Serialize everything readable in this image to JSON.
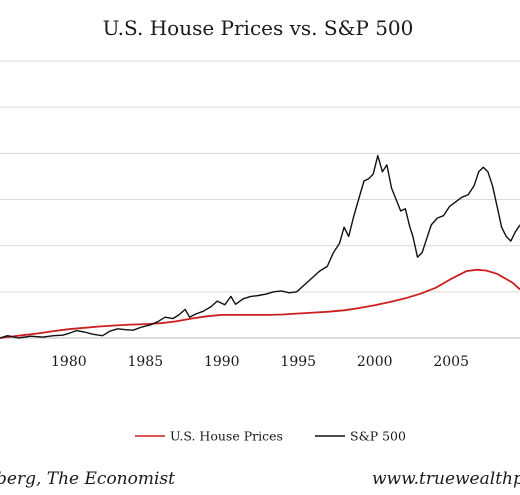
{
  "colors": {
    "house": "#cc1f1f",
    "sp500": "#111111",
    "grid": "#d9d9d9",
    "axis": "#bfbfbf"
  },
  "footer": {
    "source": "berg, The Economist",
    "site": "www.truewealthp"
  },
  "chart_data": {
    "type": "line",
    "title": "U.S. House Prices vs. S&P 500",
    "xlabel": "",
    "ylabel": "",
    "x_ticks": [
      "1980",
      "1985",
      "1990",
      "1995",
      "2000",
      "2005"
    ],
    "xlim": [
      1975.5,
      2009.5
    ],
    "ylim": [
      0,
      6
    ],
    "grid": true,
    "legend_position": "bottom",
    "series": [
      {
        "name": "U.S. House Prices",
        "x": [
          1975.5,
          1977,
          1978,
          1979,
          1980,
          1981,
          1982,
          1983,
          1984,
          1985,
          1986,
          1987,
          1988,
          1989,
          1990,
          1991,
          1992,
          1993,
          1994,
          1995,
          1996,
          1997,
          1998,
          1999,
          2000,
          2001,
          2002,
          2003,
          2004,
          2005,
          2006,
          2006.7,
          2007.3,
          2008,
          2009,
          2009.5
        ],
        "values": [
          0.0,
          0.06,
          0.1,
          0.15,
          0.19,
          0.22,
          0.25,
          0.27,
          0.29,
          0.3,
          0.32,
          0.36,
          0.42,
          0.47,
          0.5,
          0.5,
          0.5,
          0.5,
          0.51,
          0.53,
          0.55,
          0.57,
          0.6,
          0.65,
          0.71,
          0.78,
          0.86,
          0.96,
          1.09,
          1.28,
          1.45,
          1.48,
          1.46,
          1.39,
          1.2,
          1.05
        ]
      },
      {
        "name": "S&P 500",
        "x": [
          1975.5,
          1976,
          1976.7,
          1977.5,
          1978.3,
          1979,
          1979.6,
          1980,
          1980.5,
          1981,
          1981.6,
          1982.2,
          1982.7,
          1983.2,
          1983.7,
          1984.2,
          1984.8,
          1985.3,
          1985.8,
          1986.3,
          1986.8,
          1987.2,
          1987.6,
          1987.9,
          1988.3,
          1988.8,
          1989.3,
          1989.7,
          1990.2,
          1990.6,
          1990.9,
          1991.4,
          1991.9,
          1992.4,
          1992.9,
          1993.4,
          1993.9,
          1994.4,
          1994.9,
          1995.4,
          1995.9,
          1996.4,
          1996.9,
          1997.3,
          1997.7,
          1998,
          1998.3,
          1998.6,
          1998.9,
          1999.3,
          1999.6,
          1999.9,
          2000.2,
          2000.5,
          2000.8,
          2001.1,
          2001.4,
          2001.7,
          2002,
          2002.3,
          2002.5,
          2002.8,
          2003.1,
          2003.4,
          2003.7,
          2004.1,
          2004.5,
          2004.9,
          2005.3,
          2005.7,
          2006.1,
          2006.5,
          2006.8,
          2007.1,
          2007.4,
          2007.7,
          2008,
          2008.3,
          2008.6,
          2008.9,
          2009.2,
          2009.5
        ],
        "values": [
          0.0,
          0.05,
          0.0,
          0.04,
          0.02,
          0.05,
          0.06,
          0.1,
          0.16,
          0.13,
          0.08,
          0.05,
          0.15,
          0.2,
          0.18,
          0.17,
          0.24,
          0.28,
          0.35,
          0.45,
          0.42,
          0.5,
          0.62,
          0.45,
          0.52,
          0.58,
          0.68,
          0.8,
          0.72,
          0.9,
          0.73,
          0.85,
          0.9,
          0.92,
          0.95,
          1.0,
          1.02,
          0.98,
          1.0,
          1.15,
          1.3,
          1.45,
          1.55,
          1.85,
          2.05,
          2.4,
          2.2,
          2.6,
          2.95,
          3.4,
          3.45,
          3.55,
          3.95,
          3.6,
          3.75,
          3.25,
          3.0,
          2.75,
          2.8,
          2.4,
          2.2,
          1.75,
          1.85,
          2.15,
          2.45,
          2.6,
          2.65,
          2.85,
          2.95,
          3.05,
          3.1,
          3.3,
          3.6,
          3.7,
          3.6,
          3.3,
          2.85,
          2.4,
          2.2,
          2.1,
          2.3,
          2.45
        ]
      }
    ]
  }
}
